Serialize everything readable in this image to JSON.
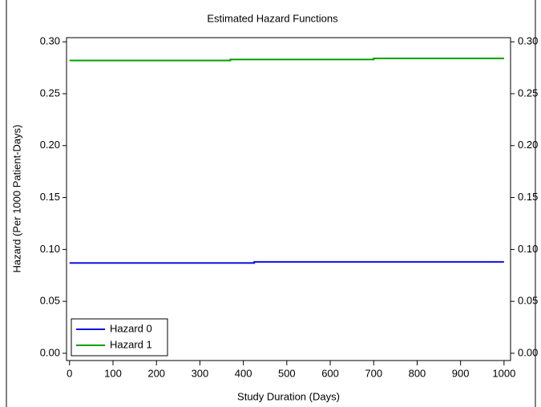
{
  "chart_data": {
    "type": "line",
    "title": "Estimated Hazard Functions",
    "xlabel": "Study Duration (Days)",
    "ylabel": "Hazard (Per 1000 Patient-Days)",
    "xlim": [
      -7,
      1015
    ],
    "xticks": [
      0,
      100,
      200,
      300,
      400,
      500,
      600,
      700,
      800,
      900,
      1000
    ],
    "ylim": [
      -0.007,
      0.304
    ],
    "yticks": [
      {
        "value": 0,
        "label": "0.00"
      },
      {
        "value": 0.05,
        "label": "0.05"
      },
      {
        "value": 0.1,
        "label": "0.10"
      },
      {
        "value": 0.15,
        "label": "0.15"
      },
      {
        "value": 0.2,
        "label": "0.20"
      },
      {
        "value": 0.25,
        "label": "0.25"
      },
      {
        "value": 0.3,
        "label": "0.30"
      }
    ],
    "y2lim": [
      -0.007,
      0.304
    ],
    "y2ticks": [
      {
        "value": 0,
        "label": "0.00"
      },
      {
        "value": 0.05,
        "label": "0.05"
      },
      {
        "value": 0.1,
        "label": "0.10"
      },
      {
        "value": 0.15,
        "label": "0.15"
      },
      {
        "value": 0.2,
        "label": "0.20"
      },
      {
        "value": 0.25,
        "label": "0.25"
      },
      {
        "value": 0.3,
        "label": "0.30"
      }
    ],
    "legend": "lower-left",
    "series": [
      {
        "name": "Hazard 0",
        "color": "#1010e0",
        "x": [
          0,
          425,
          425,
          1000
        ],
        "values": [
          0.087,
          0.087,
          0.088,
          0.088
        ]
      },
      {
        "name": "Hazard 1",
        "color": "#00a000",
        "x": [
          0,
          370,
          370,
          700,
          700,
          1000
        ],
        "values": [
          0.282,
          0.282,
          0.283,
          0.283,
          0.284,
          0.284
        ]
      }
    ]
  }
}
